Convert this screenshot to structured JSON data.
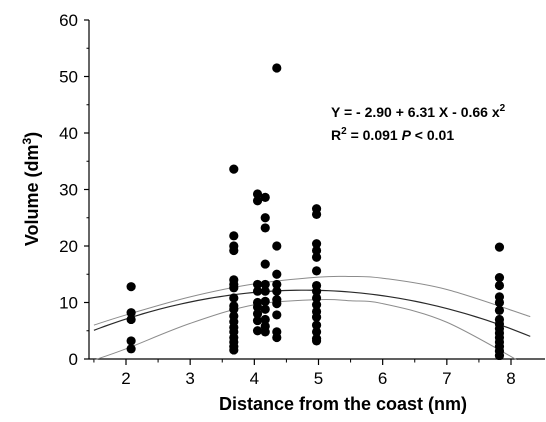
{
  "chart_data": {
    "type": "scatter",
    "xlabel": "Distance from the coast (nm)",
    "ylabel_main": "Volume (dm",
    "ylabel_sup": "3",
    "ylabel_close": ")",
    "xlim": [
      1.5,
      8.3
    ],
    "ylim": [
      0,
      60
    ],
    "xticks": [
      "2",
      "3",
      "4",
      "5",
      "6",
      "7",
      "8"
    ],
    "yticks": [
      "0",
      "10",
      "20",
      "30",
      "40",
      "50",
      "60"
    ],
    "grid": false,
    "annotation": {
      "equation": "Y = - 2.90 + 6.31 X - 0.66 x",
      "equation_sup": "2",
      "r2_label": "R",
      "r2_sup": "2",
      "r2_value": " = 0.091 ",
      "p_label": "P",
      "p_value": " < 0.01"
    },
    "fit": {
      "a": -2.9,
      "b": 6.31,
      "c": -0.66,
      "x_range": [
        1.5,
        8.3
      ]
    },
    "confidence_band": {
      "upper": [
        [
          1.5,
          6.0
        ],
        [
          2.0,
          7.8
        ],
        [
          3.0,
          11.0
        ],
        [
          4.0,
          13.3
        ],
        [
          5.0,
          14.5
        ],
        [
          5.5,
          14.6
        ],
        [
          6.0,
          14.3
        ],
        [
          7.0,
          12.3
        ],
        [
          8.3,
          7.5
        ]
      ],
      "lower": [
        [
          1.5,
          -0.2
        ],
        [
          2.0,
          1.8
        ],
        [
          3.0,
          6.3
        ],
        [
          4.0,
          9.6
        ],
        [
          5.0,
          10.5
        ],
        [
          5.5,
          10.3
        ],
        [
          6.0,
          9.8
        ],
        [
          7.0,
          6.5
        ],
        [
          8.3,
          -1.5
        ]
      ]
    },
    "points": [
      {
        "x": 2.08,
        "y": 12.8
      },
      {
        "x": 2.08,
        "y": 8.2
      },
      {
        "x": 2.08,
        "y": 7.0
      },
      {
        "x": 2.08,
        "y": 3.2
      },
      {
        "x": 2.08,
        "y": 1.8
      },
      {
        "x": 3.68,
        "y": 33.6
      },
      {
        "x": 3.68,
        "y": 21.8
      },
      {
        "x": 3.68,
        "y": 20.0
      },
      {
        "x": 3.68,
        "y": 19.2
      },
      {
        "x": 3.68,
        "y": 14.0
      },
      {
        "x": 3.68,
        "y": 13.2
      },
      {
        "x": 3.68,
        "y": 12.6
      },
      {
        "x": 3.68,
        "y": 10.8
      },
      {
        "x": 3.68,
        "y": 9.4
      },
      {
        "x": 3.68,
        "y": 8.8
      },
      {
        "x": 3.68,
        "y": 7.6
      },
      {
        "x": 3.68,
        "y": 6.6
      },
      {
        "x": 3.68,
        "y": 5.6
      },
      {
        "x": 3.68,
        "y": 4.8
      },
      {
        "x": 3.68,
        "y": 3.8
      },
      {
        "x": 3.68,
        "y": 3.0
      },
      {
        "x": 3.68,
        "y": 2.2
      },
      {
        "x": 3.68,
        "y": 1.6
      },
      {
        "x": 4.05,
        "y": 29.2
      },
      {
        "x": 4.05,
        "y": 28.0
      },
      {
        "x": 4.05,
        "y": 13.2
      },
      {
        "x": 4.05,
        "y": 12.0
      },
      {
        "x": 4.05,
        "y": 10.0
      },
      {
        "x": 4.05,
        "y": 9.2
      },
      {
        "x": 4.05,
        "y": 8.0
      },
      {
        "x": 4.05,
        "y": 6.8
      },
      {
        "x": 4.05,
        "y": 5.0
      },
      {
        "x": 4.17,
        "y": 28.6
      },
      {
        "x": 4.17,
        "y": 25.0
      },
      {
        "x": 4.17,
        "y": 23.2
      },
      {
        "x": 4.17,
        "y": 16.8
      },
      {
        "x": 4.17,
        "y": 13.2
      },
      {
        "x": 4.17,
        "y": 12.0
      },
      {
        "x": 4.17,
        "y": 10.2
      },
      {
        "x": 4.17,
        "y": 8.8
      },
      {
        "x": 4.17,
        "y": 7.0
      },
      {
        "x": 4.17,
        "y": 5.8
      },
      {
        "x": 4.17,
        "y": 4.8
      },
      {
        "x": 4.35,
        "y": 51.5
      },
      {
        "x": 4.35,
        "y": 20.0
      },
      {
        "x": 4.35,
        "y": 15.0
      },
      {
        "x": 4.35,
        "y": 13.2
      },
      {
        "x": 4.35,
        "y": 12.0
      },
      {
        "x": 4.35,
        "y": 10.5
      },
      {
        "x": 4.35,
        "y": 9.8
      },
      {
        "x": 4.35,
        "y": 7.8
      },
      {
        "x": 4.35,
        "y": 4.8
      },
      {
        "x": 4.35,
        "y": 3.8
      },
      {
        "x": 4.97,
        "y": 26.6
      },
      {
        "x": 4.97,
        "y": 25.6
      },
      {
        "x": 4.97,
        "y": 20.4
      },
      {
        "x": 4.97,
        "y": 19.2
      },
      {
        "x": 4.97,
        "y": 18.0
      },
      {
        "x": 4.97,
        "y": 15.6
      },
      {
        "x": 4.97,
        "y": 13.0
      },
      {
        "x": 4.97,
        "y": 12.0
      },
      {
        "x": 4.97,
        "y": 10.8
      },
      {
        "x": 4.97,
        "y": 9.6
      },
      {
        "x": 4.97,
        "y": 8.4
      },
      {
        "x": 4.97,
        "y": 7.4
      },
      {
        "x": 4.97,
        "y": 6.0
      },
      {
        "x": 4.97,
        "y": 4.8
      },
      {
        "x": 4.97,
        "y": 3.6
      },
      {
        "x": 4.97,
        "y": 3.2
      },
      {
        "x": 7.82,
        "y": 19.8
      },
      {
        "x": 7.82,
        "y": 14.4
      },
      {
        "x": 7.82,
        "y": 13.0
      },
      {
        "x": 7.82,
        "y": 11.0
      },
      {
        "x": 7.82,
        "y": 10.0
      },
      {
        "x": 7.82,
        "y": 8.6
      },
      {
        "x": 7.82,
        "y": 7.0
      },
      {
        "x": 7.82,
        "y": 6.2
      },
      {
        "x": 7.82,
        "y": 5.4
      },
      {
        "x": 7.82,
        "y": 4.6
      },
      {
        "x": 7.82,
        "y": 3.8
      },
      {
        "x": 7.82,
        "y": 3.0
      },
      {
        "x": 7.82,
        "y": 2.2
      },
      {
        "x": 7.82,
        "y": 1.4
      },
      {
        "x": 7.82,
        "y": 0.6
      }
    ],
    "colors": {
      "points": "#000000",
      "fit": "#2a2a2a",
      "band": "#8c8c8c",
      "axis": "#000000"
    }
  }
}
